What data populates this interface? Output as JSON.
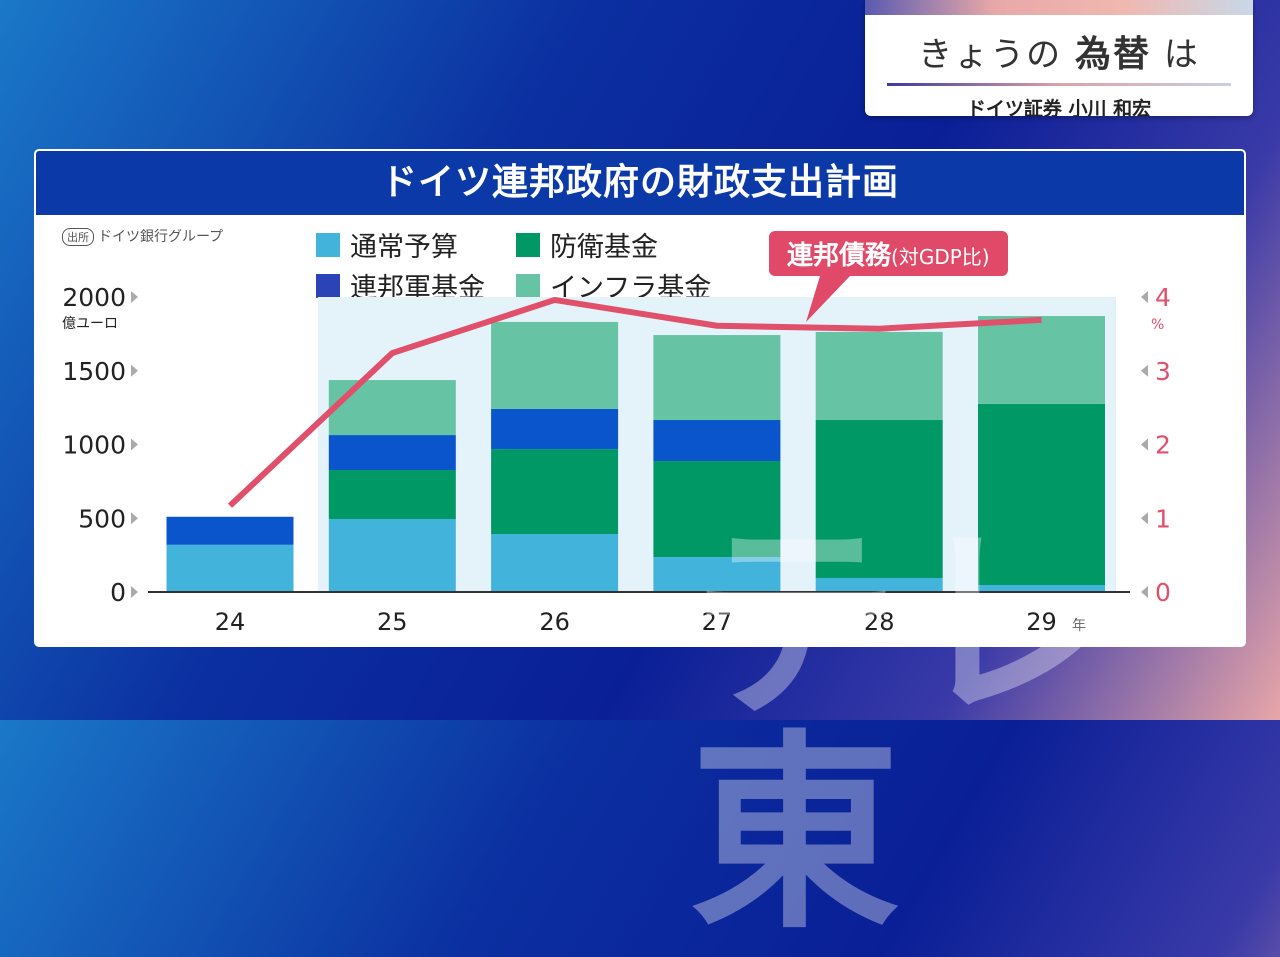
{
  "corner": {
    "title_pre": "きょうの",
    "title_bold": "為替",
    "title_post": "は",
    "subtitle": "ドイツ証券 小川 和宏"
  },
  "panel_title": "ドイツ連邦政府の財政支出計画",
  "source": {
    "tag": "出所",
    "text": "ドイツ銀行グループ"
  },
  "callout": {
    "main": "連邦債務",
    "paren": "(対GDP比)"
  },
  "watermark": "テレ東",
  "chart_data": {
    "type": "bar",
    "stacked": true,
    "title": "ドイツ連邦政府の財政支出計画",
    "categories": [
      "24",
      "25",
      "26",
      "27",
      "28",
      "29"
    ],
    "x_unit": "年",
    "ylabel": "億ユーロ",
    "ylim": [
      0,
      2000
    ],
    "yticks": [
      "0",
      "500",
      "1000",
      "1500",
      "2000"
    ],
    "y2label": "%",
    "y2lim": [
      0,
      4
    ],
    "y2ticks": [
      "0",
      "1",
      "2",
      "3",
      "4"
    ],
    "highlight_categories": [
      "25",
      "26",
      "27",
      "28",
      "29"
    ],
    "series": [
      {
        "name": "通常予算",
        "color": "#42b4dc",
        "values": [
          320,
          495,
          393,
          237,
          95,
          47
        ]
      },
      {
        "name": "防衛基金",
        "color": "#009966",
        "values": [
          0,
          332,
          576,
          651,
          1071,
          1228
        ]
      },
      {
        "name": "連邦軍基金",
        "color": "#0b55cc",
        "values": [
          190,
          237,
          272,
          278,
          0,
          0
        ]
      },
      {
        "name": "インフラ基金",
        "color": "#66c4a4",
        "values": [
          0,
          373,
          590,
          576,
          597,
          596
        ]
      }
    ],
    "line": {
      "name": "連邦債務(対GDP比)",
      "axis": "right",
      "color": "#e0506a",
      "values": [
        1.17,
        3.24,
        3.96,
        3.61,
        3.57,
        3.69
      ]
    },
    "legend_order": [
      0,
      1,
      2,
      3
    ]
  }
}
